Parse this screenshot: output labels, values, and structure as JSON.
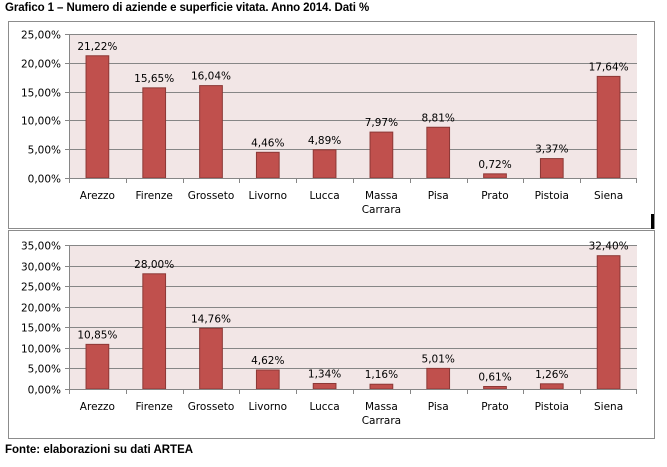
{
  "title": "Grafico 1 – Numero di aziende e superficie vitata. Anno 2014. Dati %",
  "source": "Fonte: elaborazioni su dati ARTEA",
  "colors": {
    "bar_fill": "#c0504d",
    "bar_stroke": "#8c3836",
    "plot_background": "#f2e6e6",
    "gridline": "#868686",
    "frame_border": "#8c8c8c"
  },
  "chart_data": [
    {
      "type": "bar",
      "title": "",
      "xlabel": "",
      "ylabel": "",
      "categories": [
        "Arezzo",
        "Firenze",
        "Grosseto",
        "Livorno",
        "Lucca",
        "Massa Carrara",
        "Pisa",
        "Prato",
        "Pistoia",
        "Siena"
      ],
      "category_label_lines": [
        [
          "Arezzo"
        ],
        [
          "Firenze"
        ],
        [
          "Grosseto"
        ],
        [
          "Livorno"
        ],
        [
          "Lucca"
        ],
        [
          "Massa",
          "Carrara"
        ],
        [
          "Pisa"
        ],
        [
          "Prato"
        ],
        [
          "Pistoia"
        ],
        [
          "Siena"
        ]
      ],
      "values": [
        21.22,
        15.65,
        16.04,
        4.46,
        4.89,
        7.97,
        8.81,
        0.72,
        3.37,
        17.64
      ],
      "data_labels": [
        "21,22%",
        "15,65%",
        "16,04%",
        "4,46%",
        "4,89%",
        "7,97%",
        "8,81%",
        "0,72%",
        "3,37%",
        "17,64%"
      ],
      "ylim": [
        0,
        25
      ],
      "yticks": [
        0,
        5,
        10,
        15,
        20,
        25
      ],
      "ytick_labels": [
        "0,00%",
        "5,00%",
        "10,00%",
        "15,00%",
        "20,00%",
        "25,00%"
      ],
      "grid": true,
      "legend": "none"
    },
    {
      "type": "bar",
      "title": "",
      "xlabel": "",
      "ylabel": "",
      "categories": [
        "Arezzo",
        "Firenze",
        "Grosseto",
        "Livorno",
        "Lucca",
        "Massa Carrara",
        "Pisa",
        "Prato",
        "Pistoia",
        "Siena"
      ],
      "category_label_lines": [
        [
          "Arezzo"
        ],
        [
          "Firenze"
        ],
        [
          "Grosseto"
        ],
        [
          "Livorno"
        ],
        [
          "Lucca"
        ],
        [
          "Massa",
          "Carrara"
        ],
        [
          "Pisa"
        ],
        [
          "Prato"
        ],
        [
          "Pistoia"
        ],
        [
          "Siena"
        ]
      ],
      "values": [
        10.85,
        28.0,
        14.76,
        4.62,
        1.34,
        1.16,
        5.01,
        0.61,
        1.26,
        32.4
      ],
      "data_labels": [
        "10,85%",
        "28,00%",
        "14,76%",
        "4,62%",
        "1,34%",
        "1,16%",
        "5,01%",
        "0,61%",
        "1,26%",
        "32,40%"
      ],
      "ylim": [
        0,
        35
      ],
      "yticks": [
        0,
        5,
        10,
        15,
        20,
        25,
        30,
        35
      ],
      "ytick_labels": [
        "0,00%",
        "5,00%",
        "10,00%",
        "15,00%",
        "20,00%",
        "25,00%",
        "30,00%",
        "35,00%"
      ],
      "grid": true,
      "legend": "none"
    }
  ]
}
